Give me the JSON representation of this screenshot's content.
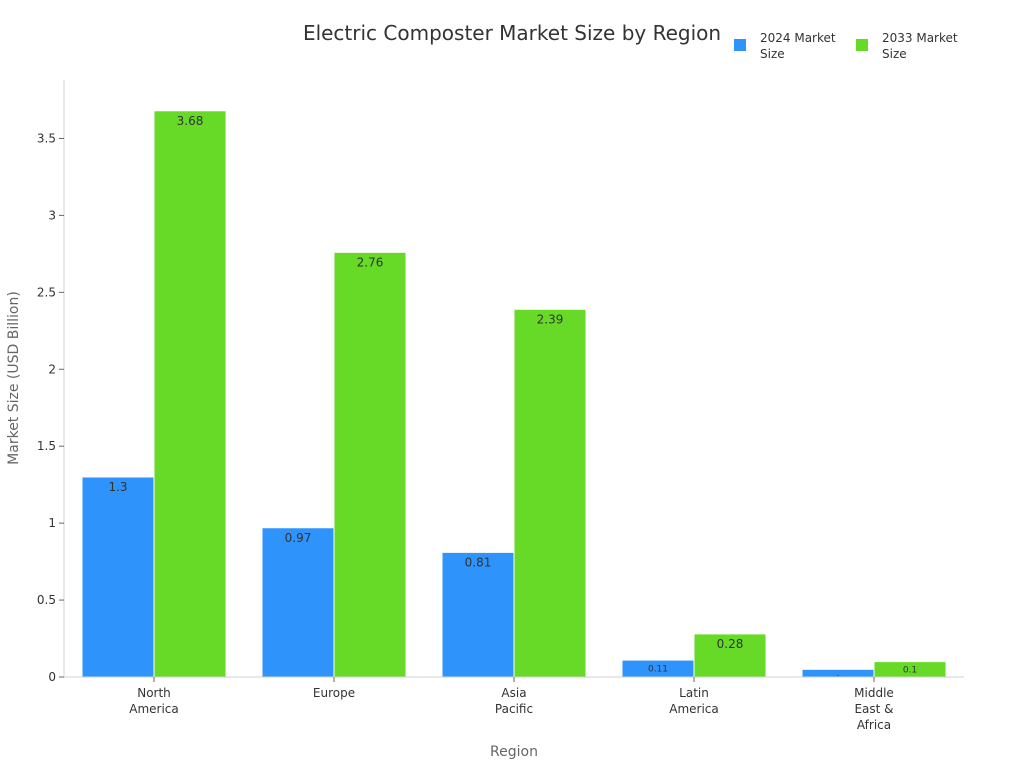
{
  "chart_data": {
    "type": "bar",
    "title": "Electric Composter Market Size by Region",
    "xlabel": "Region",
    "ylabel": "Market Size (USD Billion)",
    "categories": [
      [
        "North",
        "America"
      ],
      [
        "Europe"
      ],
      [
        "Asia",
        "Pacific"
      ],
      [
        "Latin",
        "America"
      ],
      [
        "Middle",
        "East &",
        "Africa"
      ]
    ],
    "series": [
      {
        "name": [
          "2024 Market",
          "Size"
        ],
        "color": "#2e93fa",
        "values": [
          1.3,
          0.97,
          0.81,
          0.11,
          0.05
        ],
        "labels": [
          "1.3",
          "0.97",
          "0.81",
          "0.11",
          "."
        ]
      },
      {
        "name": [
          "2033 Market",
          "Size"
        ],
        "color": "#66da26",
        "values": [
          3.68,
          2.76,
          2.39,
          0.28,
          0.1
        ],
        "labels": [
          "3.68",
          "2.76",
          "2.39",
          "0.28",
          "0.1"
        ]
      }
    ],
    "ylim": [
      0,
      3.88
    ],
    "yticks": [
      0,
      0.5,
      1,
      1.5,
      2,
      2.5,
      3,
      3.5
    ],
    "ytick_labels": [
      "0",
      "0.5",
      "1",
      "1.5",
      "2",
      "2.5",
      "3",
      "3.5"
    ],
    "grid": false,
    "legend_position": "top-right"
  }
}
